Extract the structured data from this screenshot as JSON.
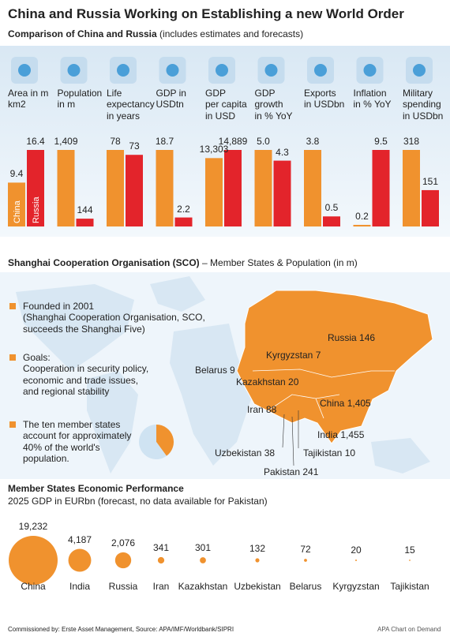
{
  "title": "China and Russia Working on Establishing a new World Order",
  "chart_data": [
    {
      "type": "bar",
      "title": "Comparison of China and Russia",
      "subtitle": "(includes estimates and forecasts)",
      "categories": [
        "Area in m\nkm2",
        "Population\nin m",
        "Life\nexpectancy\nin years",
        "GDP in\nUSDtn",
        "GDP\nper capita\nin USD",
        "GDP\ngrowth\nin % YoY",
        "Exports\nin USDbn",
        "Inflation\nin % YoY",
        "Military\nspending\nin USDbn"
      ],
      "series": [
        {
          "name": "China",
          "color": "#f0922e",
          "values": [
            9.4,
            1409,
            78,
            18.7,
            13303,
            5.0,
            3.8,
            0.2,
            318
          ],
          "value_labels": [
            "9.4",
            "1,409",
            "78",
            "18.7",
            "13,303",
            "5.0",
            "3.8",
            "0.2",
            "318"
          ]
        },
        {
          "name": "Russia",
          "color": "#e3242b",
          "values": [
            16.4,
            144,
            73,
            2.2,
            14889,
            4.3,
            0.5,
            9.5,
            151
          ],
          "value_labels": [
            "16.4",
            "144",
            "73",
            "2.2",
            "14,889",
            "4.3",
            "0.5",
            "9.5",
            "151"
          ]
        }
      ]
    },
    {
      "type": "pie",
      "values": [
        40,
        60
      ],
      "colors": [
        "#f0922e",
        "#cfe3f2"
      ]
    },
    {
      "type": "bubble",
      "title": "Member States Economic Performance",
      "subtitle": "2025 GDP in EURbn (forecast, no data available for Pakistan)",
      "categories": [
        "China",
        "India",
        "Russia",
        "Iran",
        "Kazakhstan",
        "Uzbekistan",
        "Belarus",
        "Kyrgyzstan",
        "Tajikistan"
      ],
      "values": [
        19232,
        4187,
        2076,
        341,
        301,
        132,
        72,
        20,
        15
      ],
      "value_labels": [
        "19,232",
        "4,187",
        "2,076",
        "341",
        "301",
        "132",
        "72",
        "20",
        "15"
      ],
      "color": "#f0922e"
    }
  ],
  "sco": {
    "title": "Shanghai Cooperation Organisation (SCO)",
    "subtitle": "– Member States & Population (in m)",
    "bullets": [
      "Founded in 2001\n(Shanghai Cooperation Organisation, SCO,\nsucceeds the Shanghai Five)",
      "Goals:\nCooperation in security policy,\neconomic and trade issues,\nand regional stability",
      "The ten member states\naccount for approximately\n40% of the world's\npopulation."
    ],
    "map_labels": [
      "Russia 146",
      "Kyrgyzstan 7",
      "Belarus 9",
      "Kazakhstan 20",
      "Iran 88",
      "China 1,405",
      "India 1,455",
      "Uzbekistan 38",
      "Tajikistan 10",
      "Pakistan 241"
    ]
  },
  "footer": {
    "source": "Commissioned by: Erste Asset Management, Source: APA/IMF/Worldbank/SIPRI",
    "credit": "APA Chart on Demand"
  }
}
